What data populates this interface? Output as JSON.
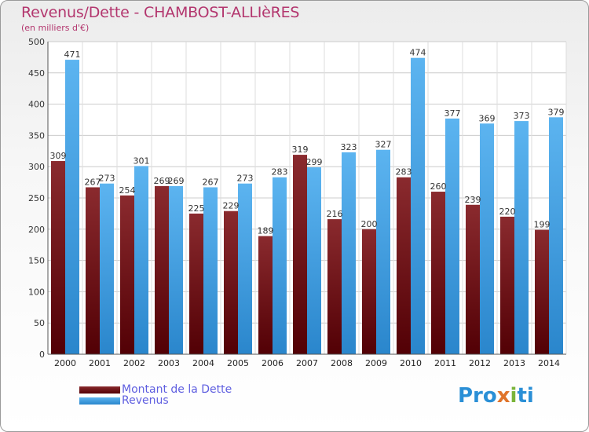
{
  "chart_data": {
    "type": "bar",
    "title": "Revenus/Dette - CHAMBOST-ALLIèRES",
    "subtitle": "(en milliers d'€)",
    "categories": [
      "2000",
      "2001",
      "2002",
      "2003",
      "2004",
      "2005",
      "2006",
      "2007",
      "2008",
      "2009",
      "2010",
      "2011",
      "2012",
      "2013",
      "2014"
    ],
    "series": [
      {
        "name": "Montant de la Dette",
        "color": "#7a1a1e",
        "values": [
          309,
          267,
          254,
          269,
          225,
          229,
          189,
          319,
          216,
          200,
          283,
          260,
          239,
          220,
          199
        ]
      },
      {
        "name": "Revenus",
        "color": "#3a9ee6",
        "values": [
          471,
          273,
          301,
          269,
          267,
          273,
          283,
          299,
          323,
          327,
          474,
          377,
          369,
          373,
          379
        ]
      }
    ],
    "ylim": [
      0,
      500
    ],
    "yticks": [
      0,
      50,
      100,
      150,
      200,
      250,
      300,
      350,
      400,
      450,
      500
    ],
    "grid": true,
    "legend_position": "bottom-left"
  },
  "logo": {
    "part1": "Pro",
    "part2": "x",
    "part3": "i",
    "part4": "ti"
  }
}
